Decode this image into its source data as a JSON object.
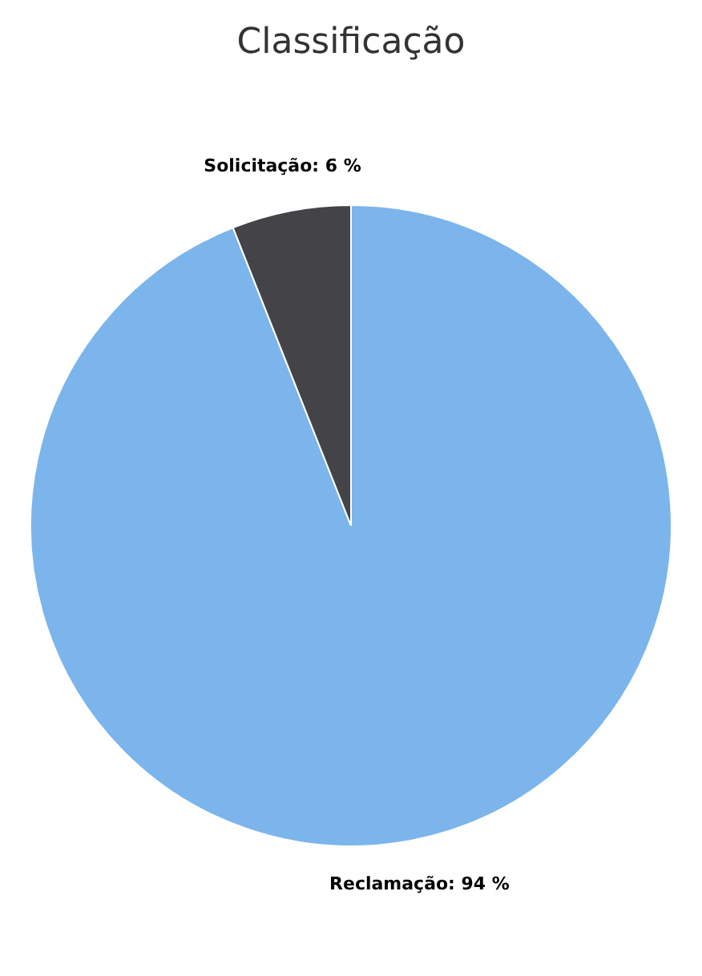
{
  "chart_data": {
    "type": "pie",
    "title": "Classificação",
    "categories": [
      "Reclamação",
      "Solicitação"
    ],
    "values": [
      94,
      6
    ],
    "colors": [
      "#7cb5ec",
      "#434348"
    ],
    "value_labels": [
      "94 %",
      "6 %"
    ],
    "legend": false
  }
}
